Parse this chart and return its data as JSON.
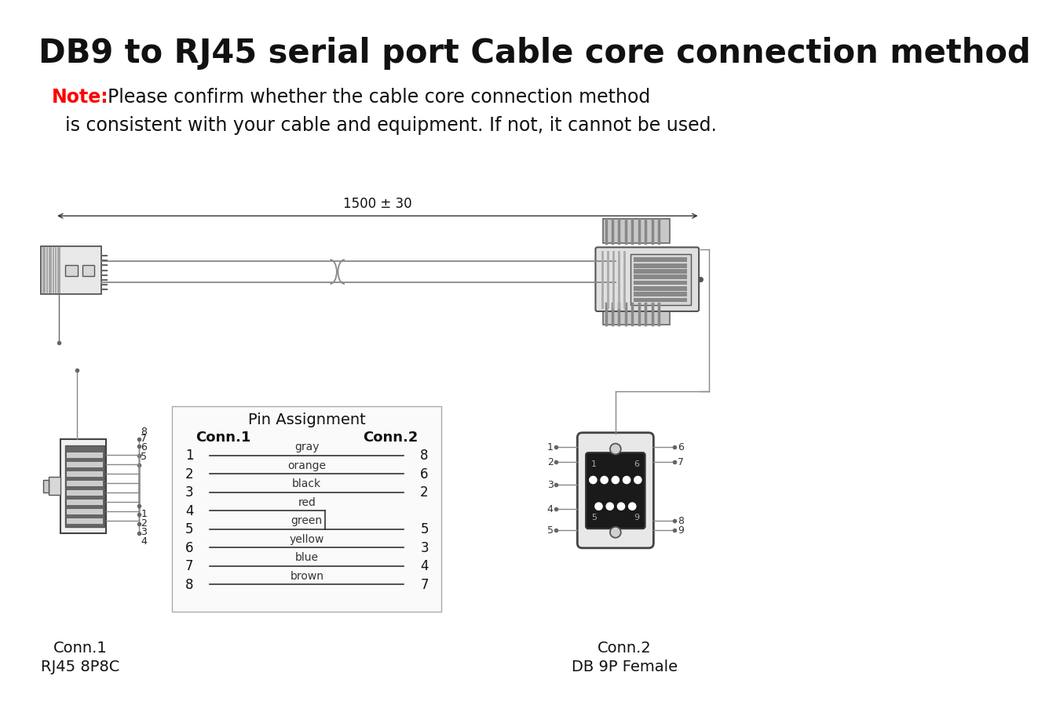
{
  "title": "DB9 to RJ45 serial port Cable core connection method",
  "note_red": "Note:",
  "note_black1": "Please confirm whether the cable core connection method",
  "note_black2": "is consistent with your cable and equipment. If not, it cannot be used.",
  "length_label": "1500 ± 30",
  "pin_assignment_title": "Pin Assignment",
  "conn1_label": "Conn.1",
  "conn2_label": "Conn.2",
  "conn1_bottom": "Conn.1",
  "conn1_type": "RJ45 8P8C",
  "conn2_bottom": "Conn.2",
  "conn2_type": "DB 9P Female",
  "pin_rows": [
    {
      "conn1": "1",
      "wire": "gray",
      "conn2": "8"
    },
    {
      "conn1": "2",
      "wire": "orange",
      "conn2": "6"
    },
    {
      "conn1": "3",
      "wire": "black",
      "conn2": "2"
    },
    {
      "conn1": "4",
      "wire": "red",
      "conn2": ""
    },
    {
      "conn1": "5",
      "wire": "green",
      "conn2": "5"
    },
    {
      "conn1": "6",
      "wire": "yellow",
      "conn2": "3"
    },
    {
      "conn1": "7",
      "wire": "blue",
      "conn2": "4"
    },
    {
      "conn1": "8",
      "wire": "brown",
      "conn2": "7"
    }
  ],
  "bg_color": "#ffffff",
  "line_color": "#333333"
}
